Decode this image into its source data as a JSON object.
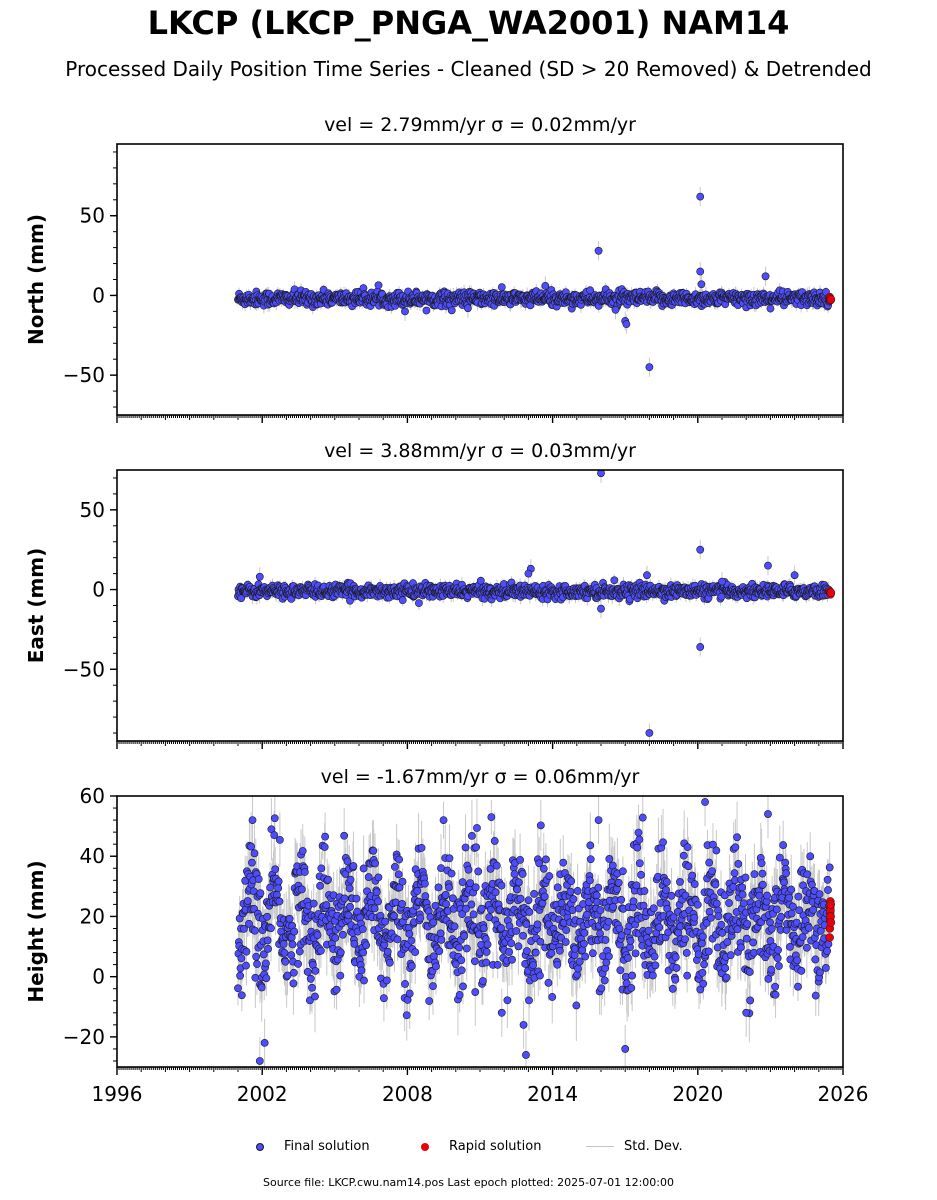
{
  "title": "LKCP (LKCP_PNGA_WA2001) NAM14",
  "subtitle": "Processed Daily Position Time Series - Cleaned (SD > 20 Removed) & Detrended",
  "legend": {
    "final": "Final solution",
    "rapid": "Rapid solution",
    "std": "Std. Dev."
  },
  "source_note": "Source file: LKCP.cwu.nam14.pos  Last epoch plotted: 2025-07-01 12:00:00",
  "colors": {
    "final": "#4d4dff",
    "rapid": "#e8000b",
    "std_dev": "#c8c8c8",
    "edge": "#1a1a1a"
  },
  "chart_data": [
    {
      "type": "scatter",
      "component": "north",
      "title": "vel = 2.79mm/yr   σ = 0.02mm/yr",
      "ylabel": "North (mm)",
      "xlim": [
        1996,
        2026
      ],
      "ylim": [
        -75,
        95
      ],
      "yticks": [
        -50,
        0,
        50
      ],
      "xticks": [
        1996,
        2002,
        2008,
        2014,
        2020,
        2026
      ],
      "show_xtick_labels": false,
      "final_series": {
        "x_range": [
          2001.0,
          2025.45
        ],
        "baseline": -2,
        "scatter": 2.2,
        "outliers": [
          [
            2015.9,
            28
          ],
          [
            2017.0,
            -16
          ],
          [
            2017.05,
            -18
          ],
          [
            2018.0,
            -45
          ],
          [
            2020.1,
            62
          ],
          [
            2020.1,
            15
          ],
          [
            2020.15,
            7
          ],
          [
            2022.8,
            12
          ],
          [
            2013.7,
            6
          ],
          [
            2007.9,
            -10
          ],
          [
            2010.5,
            -8
          ],
          [
            2016.6,
            -9
          ]
        ]
      },
      "rapid_series": {
        "x_range": [
          2025.45,
          2025.5
        ],
        "values": [
          -1,
          -2,
          -3,
          -2.5
        ]
      }
    },
    {
      "type": "scatter",
      "component": "east",
      "title": "vel = 3.88mm/yr   σ = 0.03mm/yr",
      "ylabel": "East (mm)",
      "xlim": [
        1996,
        2026
      ],
      "ylim": [
        -95,
        75
      ],
      "yticks": [
        -50,
        0,
        50
      ],
      "xticks": [
        1996,
        2002,
        2008,
        2014,
        2020,
        2026
      ],
      "show_xtick_labels": false,
      "final_series": {
        "x_range": [
          2001.0,
          2025.45
        ],
        "baseline": -1,
        "scatter": 2.0,
        "outliers": [
          [
            2016.0,
            73
          ],
          [
            2016.0,
            -12
          ],
          [
            2018.0,
            -90
          ],
          [
            2020.1,
            25
          ],
          [
            2020.1,
            -36
          ],
          [
            2013.1,
            13
          ],
          [
            2013.0,
            10
          ],
          [
            2017.9,
            9
          ],
          [
            2001.9,
            8
          ],
          [
            2022.9,
            15
          ],
          [
            2024.0,
            9
          ],
          [
            2021.0,
            5
          ]
        ]
      },
      "rapid_series": {
        "x_range": [
          2025.45,
          2025.5
        ],
        "values": [
          -1,
          -2,
          -3,
          -2
        ]
      }
    },
    {
      "type": "scatter",
      "component": "height",
      "title": "vel = -1.67mm/yr   σ = 0.06mm/yr",
      "ylabel": "Height (mm)",
      "xlim": [
        1996,
        2026
      ],
      "ylim": [
        -30,
        60
      ],
      "yticks": [
        -20,
        0,
        20,
        40,
        60
      ],
      "xticks": [
        1996,
        2002,
        2008,
        2014,
        2020,
        2026
      ],
      "show_xtick_labels": true,
      "final_series": {
        "x_range": [
          2001.0,
          2025.45
        ],
        "baseline": 19,
        "scatter": 9,
        "seasonal_amplitude": 9,
        "outliers": [
          [
            2001.9,
            -28
          ],
          [
            2002.1,
            -22
          ],
          [
            2001.6,
            52
          ],
          [
            2002.5,
            47
          ],
          [
            2012.9,
            -26
          ],
          [
            2012.8,
            -16
          ],
          [
            2011.9,
            -12
          ],
          [
            2017.0,
            -24
          ],
          [
            2020.3,
            58
          ],
          [
            2022.9,
            54
          ],
          [
            2015.9,
            52
          ],
          [
            2022.0,
            -12
          ]
        ]
      },
      "rapid_series": {
        "x_range": [
          2025.45,
          2025.5
        ],
        "values": [
          13,
          16,
          19,
          21,
          23,
          25,
          22,
          20,
          24,
          18
        ]
      }
    }
  ]
}
